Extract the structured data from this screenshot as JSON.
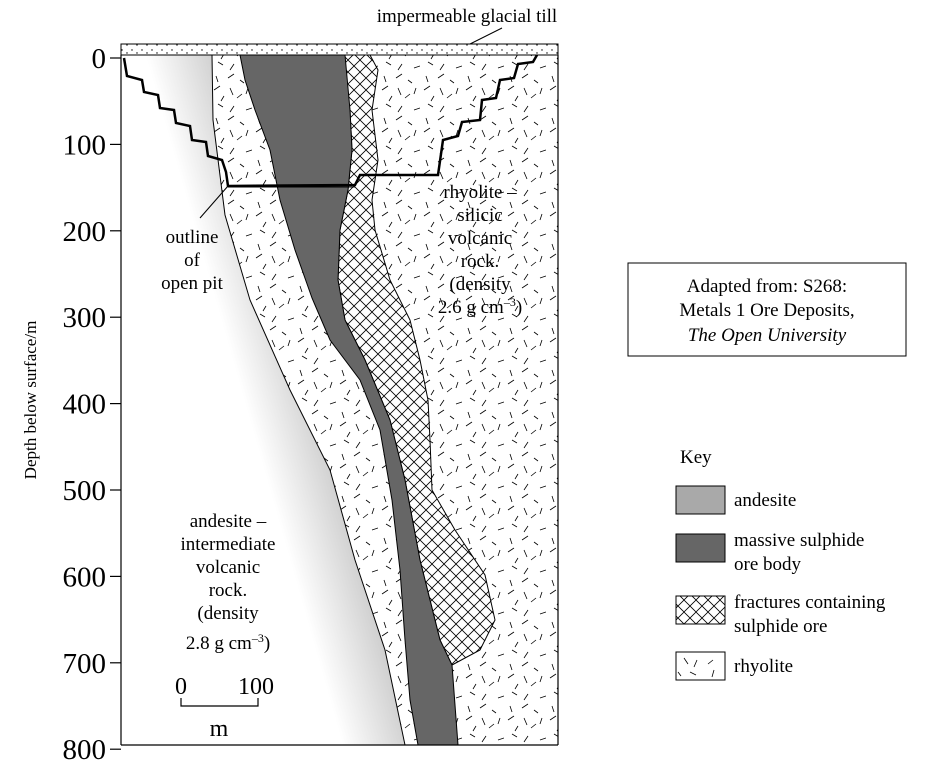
{
  "header": {
    "till_label": "impermeable glacial till"
  },
  "axis": {
    "ylabel": "Depth below surface/m",
    "ticks": [
      "0",
      "100",
      "200",
      "300",
      "400",
      "500",
      "600",
      "700",
      "800"
    ]
  },
  "labels": {
    "pit": [
      "outline",
      "of",
      "open pit"
    ],
    "rhyolite": [
      "rhyolite –",
      "silicic",
      "volcanic",
      "rock.",
      "(density",
      "2.6 g cm",
      "–3",
      ")"
    ],
    "andesite": [
      "andesite –",
      "intermediate",
      "volcanic",
      "rock.",
      "(density",
      "2.8 g cm",
      "–3",
      ")"
    ]
  },
  "scale_bar": {
    "start": "0",
    "end": "100",
    "unit": "m"
  },
  "source_box": {
    "line1": "Adapted from: S268:",
    "line2": "Metals 1 Ore Deposits,",
    "line3": "The Open University"
  },
  "key": {
    "title": "Key",
    "items": [
      {
        "label": [
          "andesite"
        ],
        "swatch": "andesite",
        "color": "#a9a9a9"
      },
      {
        "label": [
          "massive sulphide",
          "ore body"
        ],
        "swatch": "sulphide",
        "color": "#666666"
      },
      {
        "label": [
          "fractures containing",
          "sulphide ore"
        ],
        "swatch": "fractures",
        "color": "#ffffff"
      },
      {
        "label": [
          "rhyolite"
        ],
        "swatch": "rhyolite",
        "color": "#ffffff"
      }
    ]
  }
}
